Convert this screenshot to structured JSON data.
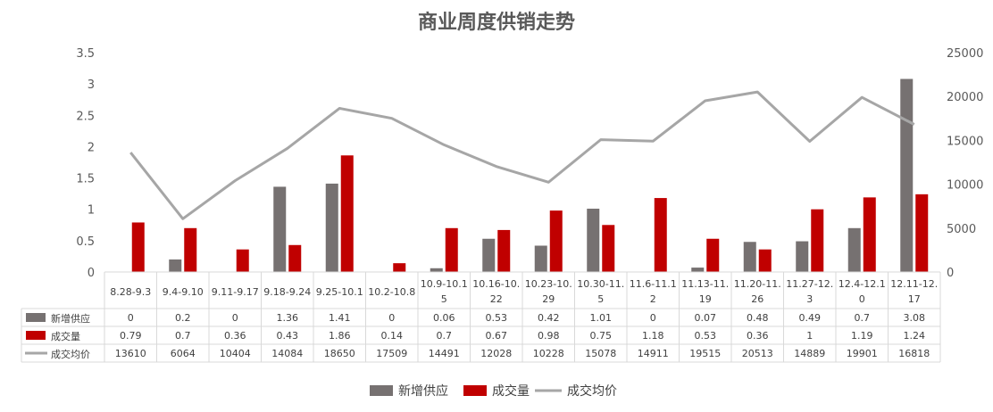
{
  "chart_data": {
    "type": "bar",
    "title": "商业周度供销走势",
    "categories": [
      [
        "8.28-9.3"
      ],
      [
        "9.4-9.10"
      ],
      [
        "9.11-9.17"
      ],
      [
        "9.18-9.24"
      ],
      [
        "9.25-10.1"
      ],
      [
        "10.2-10.8"
      ],
      [
        "10.9-10.1",
        "5"
      ],
      [
        "10.16-10.",
        "22"
      ],
      [
        "10.23-10.",
        "29"
      ],
      [
        "10.30-11.",
        "5"
      ],
      [
        "11.6-11.1",
        "2"
      ],
      [
        "11.13-11.",
        "19"
      ],
      [
        "11.20-11.",
        "26"
      ],
      [
        "11.27-12.",
        "3"
      ],
      [
        "12.4-12.1",
        "0"
      ],
      [
        "12.11-12.",
        "17"
      ]
    ],
    "series": [
      {
        "name": "新增供应",
        "kind": "bar",
        "axis": "left",
        "color": "#767171",
        "values": [
          0,
          0.2,
          0,
          1.36,
          1.41,
          0,
          0.06,
          0.53,
          0.42,
          1.01,
          0,
          0.07,
          0.48,
          0.49,
          0.7,
          3.08
        ],
        "labels": [
          "0",
          "0.2",
          "0",
          "1.36",
          "1.41",
          "0",
          "0.06",
          "0.53",
          "0.42",
          "1.01",
          "0",
          "0.07",
          "0.48",
          "0.49",
          "0.7",
          "3.08"
        ]
      },
      {
        "name": "成交量",
        "kind": "bar",
        "axis": "left",
        "color": "#C00000",
        "values": [
          0.79,
          0.7,
          0.36,
          0.43,
          1.86,
          0.14,
          0.7,
          0.67,
          0.98,
          0.75,
          1.18,
          0.53,
          0.36,
          1,
          1.19,
          1.24
        ],
        "labels": [
          "0.79",
          "0.7",
          "0.36",
          "0.43",
          "1.86",
          "0.14",
          "0.7",
          "0.67",
          "0.98",
          "0.75",
          "1.18",
          "0.53",
          "0.36",
          "1",
          "1.19",
          "1.24"
        ]
      },
      {
        "name": "成交均价",
        "kind": "line",
        "axis": "right",
        "color": "#A6A6A6",
        "values": [
          13610,
          6064,
          10404,
          14084,
          18650,
          17509,
          14491,
          12028,
          10228,
          15078,
          14911,
          19515,
          20513,
          14889,
          19901,
          16818
        ],
        "labels": [
          "13610",
          "6064",
          "10404",
          "14084",
          "18650",
          "17509",
          "14491",
          "12028",
          "10228",
          "15078",
          "14911",
          "19515",
          "20513",
          "14889",
          "19901",
          "16818"
        ]
      }
    ],
    "y_left": {
      "min": 0,
      "max": 3.5,
      "ticks": [
        "0",
        "0.5",
        "1",
        "1.5",
        "2",
        "2.5",
        "3",
        "3.5"
      ]
    },
    "y_right": {
      "min": 0,
      "max": 25000,
      "ticks": [
        "0",
        "5000",
        "10000",
        "15000",
        "20000",
        "25000"
      ]
    },
    "grid": false,
    "legend": "bottom",
    "data_table": true
  }
}
